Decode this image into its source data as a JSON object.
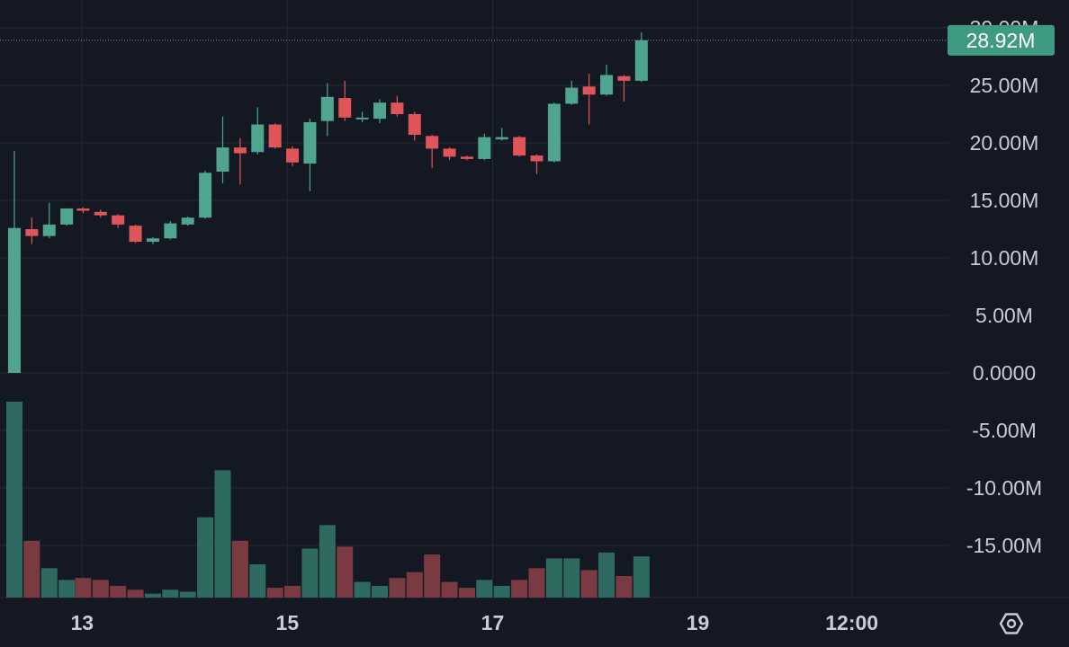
{
  "colors": {
    "background": "#141822",
    "grid": "#222734",
    "up": "#4fa58f",
    "down": "#e0555a",
    "volume_up": "#2f6a60",
    "volume_down": "#7a3a42",
    "axis_text": "#c8ccd4",
    "price_label_bg": "#3f9a82"
  },
  "settings_icon": "hexagon-gear-icon",
  "chart_data": {
    "type": "candlestick",
    "y_ticks": [
      "30.00M",
      "25.00M",
      "20.00M",
      "15.00M",
      "10.00M",
      "5.00M",
      "0.0000",
      "-5.00M",
      "-10.00M",
      "-15.00M"
    ],
    "y_tick_values": [
      30,
      25,
      20,
      15,
      10,
      5,
      0,
      -5,
      -10,
      -15
    ],
    "y_unit": "M",
    "ylim": [
      -19.8,
      31.2
    ],
    "x_ticks": [
      "13",
      "15",
      "17",
      "19",
      "12:00"
    ],
    "x_tick_positions": [
      13,
      15,
      17,
      19,
      20.5
    ],
    "xlim": [
      12.2,
      21.45
    ],
    "last_price": {
      "label": "28.92M",
      "value": 28.92
    },
    "candles": [
      {
        "t": 12.34,
        "o": 0.0,
        "h": 19.3,
        "l": 0.0,
        "c": 12.6,
        "v": 100
      },
      {
        "t": 12.51,
        "o": 12.5,
        "h": 13.5,
        "l": 11.2,
        "c": 11.9,
        "v": 29
      },
      {
        "t": 12.68,
        "o": 11.9,
        "h": 14.8,
        "l": 11.7,
        "c": 12.9,
        "v": 15
      },
      {
        "t": 12.85,
        "o": 12.9,
        "h": 14.3,
        "l": 12.8,
        "c": 14.3,
        "v": 9
      },
      {
        "t": 13.01,
        "o": 14.3,
        "h": 14.4,
        "l": 13.9,
        "c": 14.1,
        "v": 10
      },
      {
        "t": 13.18,
        "o": 14.0,
        "h": 14.2,
        "l": 13.5,
        "c": 13.7,
        "v": 9
      },
      {
        "t": 13.35,
        "o": 13.7,
        "h": 13.8,
        "l": 12.6,
        "c": 12.9,
        "v": 6
      },
      {
        "t": 13.52,
        "o": 12.8,
        "h": 12.9,
        "l": 11.3,
        "c": 11.4,
        "v": 4
      },
      {
        "t": 13.69,
        "o": 11.4,
        "h": 11.8,
        "l": 11.2,
        "c": 11.7,
        "v": 2
      },
      {
        "t": 13.86,
        "o": 11.7,
        "h": 13.2,
        "l": 11.6,
        "c": 13.0,
        "v": 4
      },
      {
        "t": 14.03,
        "o": 12.9,
        "h": 13.6,
        "l": 12.8,
        "c": 13.5,
        "v": 3
      },
      {
        "t": 14.2,
        "o": 13.5,
        "h": 17.6,
        "l": 13.4,
        "c": 17.4,
        "v": 41
      },
      {
        "t": 14.37,
        "o": 17.5,
        "h": 22.3,
        "l": 16.5,
        "c": 19.6,
        "v": 65
      },
      {
        "t": 14.54,
        "o": 19.6,
        "h": 20.4,
        "l": 16.4,
        "c": 19.1,
        "v": 29
      },
      {
        "t": 14.71,
        "o": 19.2,
        "h": 23.1,
        "l": 19.0,
        "c": 21.6,
        "v": 17
      },
      {
        "t": 14.88,
        "o": 21.6,
        "h": 21.7,
        "l": 19.5,
        "c": 19.6,
        "v": 5
      },
      {
        "t": 15.05,
        "o": 19.5,
        "h": 19.7,
        "l": 18.0,
        "c": 18.3,
        "v": 6
      },
      {
        "t": 15.22,
        "o": 18.2,
        "h": 22.1,
        "l": 15.8,
        "c": 21.8,
        "v": 25
      },
      {
        "t": 15.39,
        "o": 21.9,
        "h": 25.2,
        "l": 20.6,
        "c": 24.0,
        "v": 37
      },
      {
        "t": 15.56,
        "o": 23.9,
        "h": 25.4,
        "l": 21.9,
        "c": 22.2,
        "v": 26
      },
      {
        "t": 15.73,
        "o": 22.2,
        "h": 22.7,
        "l": 21.8,
        "c": 22.2,
        "v": 8
      },
      {
        "t": 15.9,
        "o": 22.1,
        "h": 23.8,
        "l": 21.7,
        "c": 23.5,
        "v": 6
      },
      {
        "t": 16.07,
        "o": 23.5,
        "h": 24.1,
        "l": 22.3,
        "c": 22.5,
        "v": 10
      },
      {
        "t": 16.24,
        "o": 22.5,
        "h": 22.7,
        "l": 20.2,
        "c": 20.7,
        "v": 13
      },
      {
        "t": 16.41,
        "o": 20.6,
        "h": 20.7,
        "l": 17.8,
        "c": 19.5,
        "v": 22
      },
      {
        "t": 16.58,
        "o": 19.5,
        "h": 19.6,
        "l": 18.5,
        "c": 18.8,
        "v": 8
      },
      {
        "t": 16.75,
        "o": 18.8,
        "h": 18.9,
        "l": 18.5,
        "c": 18.6,
        "v": 5
      },
      {
        "t": 16.92,
        "o": 18.6,
        "h": 20.8,
        "l": 18.5,
        "c": 20.5,
        "v": 9
      },
      {
        "t": 17.09,
        "o": 20.3,
        "h": 21.3,
        "l": 20.2,
        "c": 20.5,
        "v": 6
      },
      {
        "t": 17.26,
        "o": 20.5,
        "h": 20.6,
        "l": 18.8,
        "c": 18.9,
        "v": 9
      },
      {
        "t": 17.43,
        "o": 18.9,
        "h": 19.0,
        "l": 17.3,
        "c": 18.4,
        "v": 15
      },
      {
        "t": 17.6,
        "o": 18.4,
        "h": 23.5,
        "l": 18.3,
        "c": 23.4,
        "v": 20
      },
      {
        "t": 17.77,
        "o": 23.4,
        "h": 25.4,
        "l": 23.3,
        "c": 24.8,
        "v": 20
      },
      {
        "t": 17.94,
        "o": 24.9,
        "h": 26.0,
        "l": 21.6,
        "c": 24.2,
        "v": 14
      },
      {
        "t": 18.11,
        "o": 24.2,
        "h": 26.8,
        "l": 24.1,
        "c": 25.9,
        "v": 23
      },
      {
        "t": 18.28,
        "o": 25.8,
        "h": 25.9,
        "l": 23.6,
        "c": 25.4,
        "v": 11
      },
      {
        "t": 18.45,
        "o": 25.4,
        "h": 29.6,
        "l": 25.3,
        "c": 28.92,
        "v": 21
      }
    ]
  }
}
